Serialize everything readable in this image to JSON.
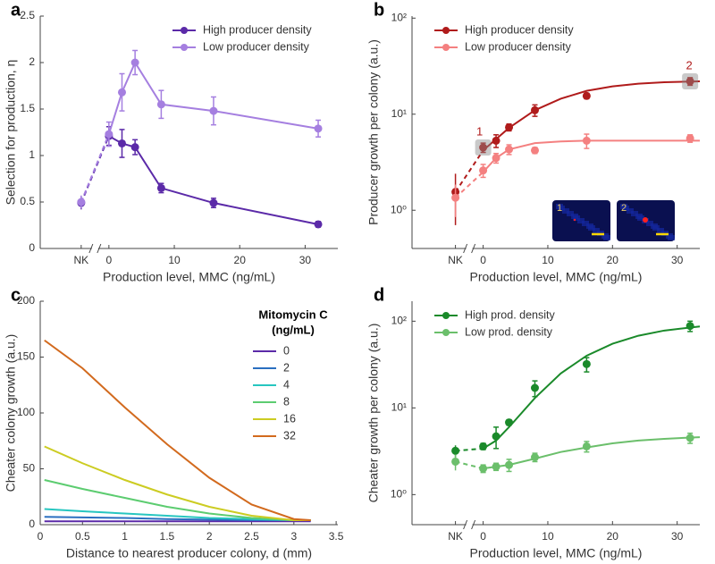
{
  "chart_data": [
    {
      "panel_label": "a",
      "type": "line",
      "y_label": "Selection for production, η",
      "x_label": "Production level, MMC (ng/mL)",
      "categories": [
        "NK"
      ],
      "x": [
        0,
        2,
        4,
        8,
        16,
        32
      ],
      "xlim": [
        -10.5,
        35
      ],
      "xticks": [
        0,
        10,
        20,
        30
      ],
      "ylim": [
        0,
        2.5
      ],
      "yticks": [
        0,
        0.5,
        1,
        1.5,
        2,
        2.5
      ],
      "legend_position": "upper right",
      "series": [
        {
          "name": "High producer density",
          "color": "#5b2aa8",
          "nk_value": 0.49,
          "nk_error": 0.07,
          "values": [
            1.21,
            1.13,
            1.09,
            0.65,
            0.49,
            0.26
          ],
          "errors": [
            0.1,
            0.15,
            0.08,
            0.05,
            0.05,
            0.03
          ]
        },
        {
          "name": "Low producer density",
          "color": "#a57fe0",
          "nk_value": 0.5,
          "nk_error": 0.07,
          "values": [
            1.23,
            1.68,
            2.0,
            1.55,
            1.48,
            1.29
          ],
          "errors": [
            0.13,
            0.2,
            0.13,
            0.15,
            0.15,
            0.09
          ]
        }
      ]
    },
    {
      "panel_label": "b",
      "type": "line",
      "y_label": "Producer growth per colony (a.u.)",
      "x_label": "Production level, MMC (ng/mL)",
      "categories": [
        "NK"
      ],
      "x": [
        0,
        2,
        4,
        8,
        16,
        32
      ],
      "xlim": [
        -11,
        33.5
      ],
      "xticks": [
        0,
        10,
        20,
        30
      ],
      "log_y": true,
      "ylim": [
        0.4,
        105
      ],
      "yticks": [
        {
          "value": 1,
          "label": "10⁰"
        },
        {
          "value": 10,
          "label": "10¹"
        },
        {
          "value": 100,
          "label": "10²"
        }
      ],
      "legend_position": "upper left",
      "annotations": [
        "1",
        "2"
      ],
      "fit_x": [
        0,
        2,
        4,
        8,
        12,
        16,
        20,
        24,
        28,
        33.5
      ],
      "series": [
        {
          "name": "High producer density",
          "color": "#b01b1b",
          "nk_value": 1.55,
          "nk_error": 0.85,
          "values": [
            4.5,
            5.3,
            7.3,
            11,
            15.5,
            22
          ],
          "errors": [
            0.5,
            0.8,
            0.6,
            1.5,
            1.0,
            2.0
          ],
          "fit_values": [
            4.2,
            5.5,
            7.2,
            11,
            14.5,
            17.5,
            19.5,
            20.8,
            21.5,
            22
          ]
        },
        {
          "name": "Low producer density",
          "color": "#f48080",
          "nk_value": 1.35,
          "nk_error": 0.5,
          "values": [
            2.6,
            3.5,
            4.3,
            4.2,
            5.3,
            5.6
          ],
          "errors": [
            0.4,
            0.4,
            0.5,
            0.3,
            0.9,
            0.5
          ],
          "fit_values": [
            2.5,
            3.5,
            4.3,
            5.0,
            5.2,
            5.3,
            5.3,
            5.3,
            5.3,
            5.3
          ]
        }
      ]
    },
    {
      "panel_label": "c",
      "type": "line",
      "y_label": "Cheater colony growth (a.u.)",
      "x_label": "Distance to nearest producer colony, d (mm)",
      "x": [
        0.05,
        0.5,
        1,
        1.5,
        2,
        2.5,
        3,
        3.2
      ],
      "xlim": [
        0,
        3.52
      ],
      "xticks": [
        0,
        0.5,
        1,
        1.5,
        2,
        2.5,
        3,
        3.5
      ],
      "ylim": [
        0,
        200
      ],
      "yticks": [
        0,
        50,
        100,
        150,
        200
      ],
      "legend_position": "upper right",
      "legend_title": [
        "Mitomycin C",
        "(ng/mL)"
      ],
      "series": [
        {
          "name": "0",
          "color": "#5b2aa8",
          "values": [
            3,
            3,
            3,
            3,
            3,
            3,
            3,
            3
          ]
        },
        {
          "name": "2",
          "color": "#2a6fc0",
          "values": [
            7,
            6.5,
            6,
            5,
            4.5,
            4,
            4,
            4
          ]
        },
        {
          "name": "4",
          "color": "#27c6c0",
          "values": [
            14,
            12,
            10,
            8,
            6,
            5,
            4,
            4
          ]
        },
        {
          "name": "8",
          "color": "#5ccc70",
          "values": [
            40,
            32,
            24,
            16,
            10,
            6,
            4,
            4
          ]
        },
        {
          "name": "16",
          "color": "#cccc22",
          "values": [
            70,
            55,
            40,
            27,
            16,
            8,
            4,
            4
          ]
        },
        {
          "name": "32",
          "color": "#d26a1e",
          "values": [
            165,
            140,
            105,
            72,
            42,
            18,
            5,
            4
          ]
        }
      ]
    },
    {
      "panel_label": "d",
      "type": "line",
      "y_label": "Cheater growth per colony (a.u.)",
      "x_label": "Production level, MMC (ng/mL)",
      "categories": [
        "NK"
      ],
      "x": [
        0,
        2,
        4,
        8,
        16,
        32
      ],
      "xlim": [
        -11,
        33.5
      ],
      "xticks": [
        0,
        10,
        20,
        30
      ],
      "log_y": true,
      "ylim": [
        0.45,
        170
      ],
      "yticks": [
        {
          "value": 1,
          "label": "10⁰"
        },
        {
          "value": 10,
          "label": "10¹"
        },
        {
          "value": 100,
          "label": "10²"
        }
      ],
      "legend_position": "upper left",
      "fit_x": [
        0,
        2,
        4,
        8,
        12,
        16,
        20,
        24,
        28,
        33.5
      ],
      "series": [
        {
          "name": "High prod. density",
          "color": "#1a8a2a",
          "nk_value": 3.2,
          "nk_error": 0.5,
          "values": [
            3.6,
            4.7,
            6.8,
            17,
            32,
            88
          ],
          "errors": [
            0.3,
            1.3,
            0.5,
            3.5,
            6,
            12
          ],
          "fit_values": [
            3.4,
            4.2,
            6,
            13,
            25,
            40,
            55,
            68,
            78,
            87
          ]
        },
        {
          "name": "Low prod. density",
          "color": "#6bbf6b",
          "nk_value": 2.4,
          "nk_error": 0.5,
          "values": [
            2.0,
            2.1,
            2.2,
            2.7,
            3.6,
            4.5
          ],
          "errors": [
            0.2,
            0.2,
            0.35,
            0.3,
            0.5,
            0.6
          ],
          "fit_values": [
            2.0,
            2.1,
            2.2,
            2.6,
            3.1,
            3.5,
            3.9,
            4.2,
            4.4,
            4.6
          ]
        }
      ]
    }
  ]
}
